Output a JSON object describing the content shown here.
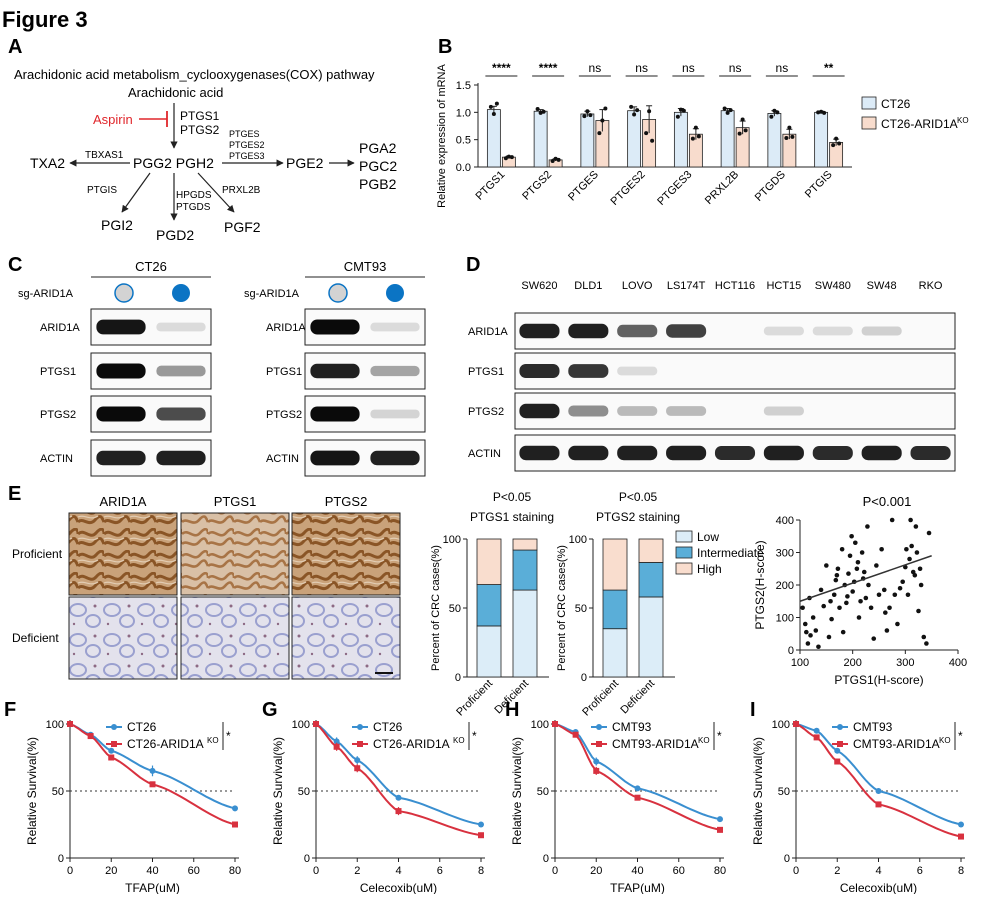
{
  "figure": {
    "title": "Figure 3"
  },
  "panel_labels": [
    "A",
    "B",
    "C",
    "D",
    "E",
    "F",
    "G",
    "H",
    "I"
  ],
  "panelA": {
    "title": "Arachidonic acid metabolism_cyclooxygenases(COX) pathway",
    "substrate": "Arachidonic acid",
    "inhibitor": "Aspirin",
    "enzymes_main": [
      "PTGS1",
      "PTGS2"
    ],
    "intermediate": "PGG2 PGH2",
    "left_enzyme": "TBXAS1",
    "left_product": "TXA2",
    "right_enzymes": [
      "PTGES",
      "PTGES2",
      "PTGES3"
    ],
    "right_product": "PGE2",
    "right_outputs": [
      "PGA2",
      "PGC2",
      "PGB2"
    ],
    "down_left_enzyme": "PTGIS",
    "down_left_product": "PGI2",
    "down_mid_enzymes": [
      "HPGDS",
      "PTGDS"
    ],
    "down_mid_product": "PGD2",
    "down_right_enzyme": "PRXL2B",
    "down_right_product": "PGF2",
    "colors": {
      "inhibitor": "#e0262b"
    }
  },
  "chart_data": [
    {
      "id": "B",
      "type": "bar",
      "ylabel": "Relative expression of mRNA",
      "ylim": [
        0,
        1.5
      ],
      "yticks": [
        "0.0",
        "0.5",
        "1.0",
        "1.5"
      ],
      "categories": [
        "PTGS1",
        "PTGS2",
        "PTGES",
        "PTGES2",
        "PTGES3",
        "PRXL2B",
        "PTGDS",
        "PTGIS"
      ],
      "significance": [
        "****",
        "****",
        "ns",
        "ns",
        "ns",
        "ns",
        "ns",
        "**"
      ],
      "legend": {
        "placement": "top-right",
        "labels": [
          "CT26",
          "CT26-ARID1A",
          "KO"
        ]
      },
      "series": [
        {
          "name": "CT26",
          "color": "#dcebf7",
          "values": [
            1.05,
            1.02,
            0.97,
            1.03,
            1.0,
            1.03,
            0.98,
            1.0
          ],
          "err": [
            0.06,
            0.03,
            0.05,
            0.07,
            0.07,
            0.04,
            0.05,
            0.02
          ],
          "points": [
            [
              1.1,
              0.97,
              1.16
            ],
            [
              1.06,
              0.99,
              1.01
            ],
            [
              0.93,
              1.02,
              0.95
            ],
            [
              1.1,
              0.96,
              1.04
            ],
            [
              0.92,
              1.05,
              1.03
            ],
            [
              1.07,
              0.99,
              1.04
            ],
            [
              0.92,
              1.03,
              1.0
            ],
            [
              1.0,
              1.01,
              0.99
            ]
          ]
        },
        {
          "name": "CT26-ARID1A KO",
          "color": "#f8dccd",
          "values": [
            0.18,
            0.13,
            0.85,
            0.87,
            0.6,
            0.72,
            0.6,
            0.45
          ],
          "err": [
            0.02,
            0.02,
            0.2,
            0.25,
            0.1,
            0.12,
            0.09,
            0.06
          ],
          "points": [
            [
              0.16,
              0.19,
              0.18
            ],
            [
              0.11,
              0.15,
              0.13
            ],
            [
              0.62,
              0.85,
              1.07
            ],
            [
              0.62,
              1.02,
              0.48
            ],
            [
              0.52,
              0.72,
              0.56
            ],
            [
              0.61,
              0.87,
              0.67
            ],
            [
              0.53,
              0.72,
              0.55
            ],
            [
              0.4,
              0.52,
              0.43
            ]
          ]
        }
      ]
    },
    {
      "id": "E-PTGS1",
      "type": "bar",
      "title": "P<0.05",
      "subtitle": "PTGS1 staining",
      "ylabel": "Percent of CRC cases(%)",
      "ylim": [
        0,
        100
      ],
      "yticks": [
        "0",
        "50",
        "100"
      ],
      "categories": [
        "Proficient",
        "Deficient"
      ],
      "series": [
        {
          "name": "Low",
          "color": "#dcedf8",
          "values": [
            37,
            63
          ]
        },
        {
          "name": "Intermediate",
          "color": "#5aaed8",
          "values": [
            30,
            29
          ]
        },
        {
          "name": "High",
          "color": "#f9ddce",
          "values": [
            33,
            8
          ]
        }
      ]
    },
    {
      "id": "E-PTGS2",
      "type": "bar",
      "title": "P<0.05",
      "subtitle": "PTGS2 staining",
      "ylabel": "Percent of CRC cases(%)",
      "ylim": [
        0,
        100
      ],
      "yticks": [
        "0",
        "50",
        "100"
      ],
      "categories": [
        "Proficient",
        "Deficient"
      ],
      "legend": {
        "placement": "top-right",
        "labels": [
          "Low",
          "Intermediate",
          "High"
        ]
      },
      "series": [
        {
          "name": "Low",
          "color": "#dcedf8",
          "values": [
            35,
            58
          ]
        },
        {
          "name": "Intermediate",
          "color": "#5aaed8",
          "values": [
            28,
            25
          ]
        },
        {
          "name": "High",
          "color": "#f9ddce",
          "values": [
            37,
            17
          ]
        }
      ]
    },
    {
      "id": "E-scatter",
      "type": "scatter",
      "title": "P<0.001",
      "xlabel": "PTGS1(H-score)",
      "ylabel": "PTGS2(H-score)",
      "xlim": [
        100,
        400
      ],
      "ylim": [
        0,
        400
      ],
      "xticks": [
        "100",
        "200",
        "300",
        "400"
      ],
      "yticks": [
        "0",
        "100",
        "200",
        "300",
        "400"
      ],
      "trend": [
        [
          100,
          150
        ],
        [
          350,
          290
        ]
      ],
      "points": [
        [
          105,
          130
        ],
        [
          110,
          80
        ],
        [
          112,
          55
        ],
        [
          115,
          20
        ],
        [
          118,
          160
        ],
        [
          120,
          45
        ],
        [
          125,
          100
        ],
        [
          130,
          60
        ],
        [
          135,
          10
        ],
        [
          140,
          185
        ],
        [
          145,
          135
        ],
        [
          150,
          260
        ],
        [
          155,
          40
        ],
        [
          158,
          150
        ],
        [
          160,
          95
        ],
        [
          165,
          170
        ],
        [
          168,
          215
        ],
        [
          170,
          230
        ],
        [
          172,
          250
        ],
        [
          175,
          130
        ],
        [
          180,
          310
        ],
        [
          182,
          55
        ],
        [
          185,
          200
        ],
        [
          188,
          145
        ],
        [
          190,
          165
        ],
        [
          192,
          235
        ],
        [
          195,
          290
        ],
        [
          198,
          350
        ],
        [
          200,
          180
        ],
        [
          203,
          210
        ],
        [
          205,
          330
        ],
        [
          208,
          250
        ],
        [
          210,
          270
        ],
        [
          212,
          100
        ],
        [
          215,
          150
        ],
        [
          218,
          300
        ],
        [
          220,
          220
        ],
        [
          222,
          240
        ],
        [
          225,
          160
        ],
        [
          228,
          380
        ],
        [
          230,
          200
        ],
        [
          235,
          130
        ],
        [
          240,
          35
        ],
        [
          245,
          260
        ],
        [
          250,
          170
        ],
        [
          255,
          310
        ],
        [
          260,
          185
        ],
        [
          262,
          115
        ],
        [
          265,
          60
        ],
        [
          270,
          130
        ],
        [
          275,
          400
        ],
        [
          280,
          170
        ],
        [
          285,
          80
        ],
        [
          290,
          190
        ],
        [
          295,
          210
        ],
        [
          300,
          255
        ],
        [
          302,
          310
        ],
        [
          305,
          170
        ],
        [
          308,
          280
        ],
        [
          310,
          400
        ],
        [
          312,
          320
        ],
        [
          315,
          240
        ],
        [
          318,
          230
        ],
        [
          320,
          380
        ],
        [
          322,
          300
        ],
        [
          325,
          120
        ],
        [
          328,
          250
        ],
        [
          330,
          200
        ],
        [
          335,
          40
        ],
        [
          340,
          20
        ],
        [
          345,
          360
        ]
      ]
    },
    {
      "id": "F",
      "type": "line",
      "xlabel": "TFAP(uM)",
      "ylabel": "Relative Survival(%)",
      "xlim": [
        0,
        80
      ],
      "ylim": [
        0,
        100
      ],
      "xticks": [
        "0",
        "20",
        "40",
        "60",
        "80"
      ],
      "yticks": [
        "0",
        "50",
        "100"
      ],
      "dotted_y": 50,
      "significance": "*",
      "legend": {
        "placement": "top-right"
      },
      "series": [
        {
          "name": "CT26",
          "color": "#3a8fd0",
          "x": [
            0,
            10,
            20,
            40,
            80
          ],
          "y": [
            100,
            92,
            80,
            65,
            37
          ],
          "err": [
            0,
            2,
            2,
            4,
            2
          ]
        },
        {
          "name": "CT26-ARID1A KO",
          "color": "#d8313f",
          "x": [
            0,
            10,
            20,
            40,
            80
          ],
          "y": [
            100,
            91,
            75,
            55,
            25
          ],
          "err": [
            0,
            2,
            2,
            2,
            2
          ]
        }
      ]
    },
    {
      "id": "G",
      "type": "line",
      "xlabel": "Celecoxib(uM)",
      "ylabel": "Relative Survival(%)",
      "xlim": [
        0,
        8
      ],
      "ylim": [
        0,
        100
      ],
      "xticks": [
        "0",
        "2",
        "4",
        "6",
        "8"
      ],
      "yticks": [
        "0",
        "50",
        "100"
      ],
      "dotted_y": 50,
      "significance": "*",
      "legend": {
        "placement": "top-right"
      },
      "series": [
        {
          "name": "CT26",
          "color": "#3a8fd0",
          "x": [
            0,
            1,
            2,
            4,
            8
          ],
          "y": [
            100,
            87,
            73,
            45,
            25
          ],
          "err": [
            0,
            3,
            3,
            2,
            1
          ]
        },
        {
          "name": "CT26-ARID1A KO",
          "color": "#d8313f",
          "x": [
            0,
            1,
            2,
            4,
            8
          ],
          "y": [
            100,
            83,
            67,
            35,
            17
          ],
          "err": [
            0,
            3,
            3,
            3,
            1
          ]
        }
      ]
    },
    {
      "id": "H",
      "type": "line",
      "xlabel": "TFAP(uM)",
      "ylabel": "Relative Survival(%)",
      "xlim": [
        0,
        80
      ],
      "ylim": [
        0,
        100
      ],
      "xticks": [
        "0",
        "20",
        "40",
        "60",
        "80"
      ],
      "yticks": [
        "0",
        "50",
        "100"
      ],
      "dotted_y": 50,
      "significance": "*",
      "legend": {
        "placement": "top-right"
      },
      "series": [
        {
          "name": "CMT93",
          "color": "#3a8fd0",
          "x": [
            0,
            10,
            20,
            40,
            80
          ],
          "y": [
            100,
            94,
            72,
            52,
            29
          ],
          "err": [
            0,
            2,
            3,
            2,
            2
          ]
        },
        {
          "name": "CMT93-ARID1A KO",
          "color": "#d8313f",
          "x": [
            0,
            10,
            20,
            40,
            80
          ],
          "y": [
            100,
            92,
            65,
            45,
            21
          ],
          "err": [
            0,
            2,
            3,
            2,
            2
          ]
        }
      ]
    },
    {
      "id": "I",
      "type": "line",
      "xlabel": "Celecoxib(uM)",
      "ylabel": "Relative Survival(%)",
      "xlim": [
        0,
        8
      ],
      "ylim": [
        0,
        100
      ],
      "xticks": [
        "0",
        "2",
        "4",
        "6",
        "8"
      ],
      "yticks": [
        "0",
        "50",
        "100"
      ],
      "dotted_y": 50,
      "significance": "*",
      "legend": {
        "placement": "top-right"
      },
      "series": [
        {
          "name": "CMT93",
          "color": "#3a8fd0",
          "x": [
            0,
            1,
            2,
            4,
            8
          ],
          "y": [
            100,
            95,
            80,
            50,
            25
          ],
          "err": [
            0,
            1,
            2,
            2,
            1
          ]
        },
        {
          "name": "CMT93-ARID1A KO",
          "color": "#d8313f",
          "x": [
            0,
            1,
            2,
            4,
            8
          ],
          "y": [
            100,
            90,
            72,
            40,
            16
          ],
          "err": [
            0,
            2,
            2,
            2,
            1
          ]
        }
      ]
    }
  ],
  "legend_text": {
    "ct26": "CT26",
    "ct26_ko": "CT26-ARID1A",
    "cmt93": "CMT93",
    "cmt93_ko": "CMT93-ARID1A",
    "ko_sup": "KO",
    "sig": "*"
  },
  "panelC": {
    "groups": [
      {
        "cell_line": "CT26",
        "row_label": "sg-ARID1A",
        "proteins": [
          "ARID1A",
          "PTGS1",
          "PTGS2",
          "ACTIN"
        ],
        "lanes": [
          {
            "sg": "control",
            "levels": [
              0.95,
              1.0,
              1.0,
              0.9
            ]
          },
          {
            "sg": "ARID1A",
            "levels": [
              0.05,
              0.35,
              0.7,
              0.9
            ]
          }
        ]
      },
      {
        "cell_line": "CMT93",
        "row_label": "sg-ARID1A",
        "proteins": [
          "ARID1A",
          "PTGS1",
          "PTGS2",
          "ACTIN"
        ],
        "lanes": [
          {
            "sg": "control",
            "levels": [
              1.0,
              0.9,
              1.0,
              0.95
            ]
          },
          {
            "sg": "ARID1A",
            "levels": [
              0.05,
              0.3,
              0.08,
              0.9
            ]
          }
        ]
      }
    ],
    "colors": {
      "control": "#d3d3d3",
      "sg": "#0b74c4"
    }
  },
  "panelD": {
    "cell_lines": [
      "SW620",
      "DLD1",
      "LOVO",
      "LS174T",
      "HCT116",
      "HCT15",
      "SW480",
      "SW48",
      "RKO"
    ],
    "proteins": [
      "ARID1A",
      "PTGS1",
      "PTGS2",
      "ACTIN"
    ],
    "levels": [
      [
        0.9,
        0.9,
        0.6,
        0.75,
        0.0,
        0.05,
        0.05,
        0.1,
        0.0
      ],
      [
        0.85,
        0.8,
        0.05,
        0.0,
        0.0,
        0.0,
        0.0,
        0.0,
        0.0
      ],
      [
        0.9,
        0.4,
        0.2,
        0.2,
        0.0,
        0.1,
        0.0,
        0.0,
        0.0
      ],
      [
        0.9,
        0.9,
        0.9,
        0.9,
        0.85,
        0.9,
        0.85,
        0.9,
        0.85
      ]
    ]
  },
  "panelE": {
    "columns": [
      "ARID1A",
      "PTGS1",
      "PTGS2"
    ],
    "rows": [
      "Proficient",
      "Deficient"
    ],
    "tile_levels": [
      [
        1.0,
        0.75,
        0.9
      ],
      [
        0.1,
        0.15,
        0.05
      ]
    ],
    "colors": {
      "stain": "#9c6430",
      "counter": "#b7bde0"
    }
  }
}
